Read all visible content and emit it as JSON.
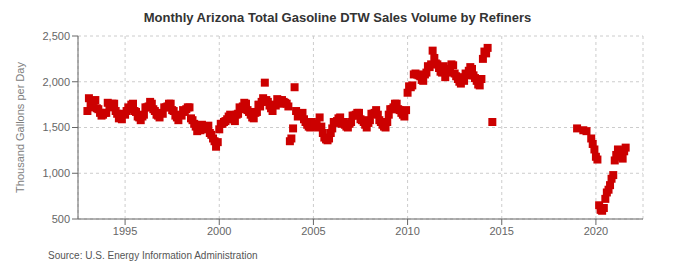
{
  "chart_data": {
    "type": "scatter",
    "title": "Monthly Arizona Total Gasoline DTW Sales Volume by Refiners",
    "ylabel": "Thousand Gallons per Day",
    "annotations": [
      "Source: U.S. Energy Information Administration"
    ],
    "color": "#CC0000",
    "marker": "square",
    "grid": true,
    "xlim": [
      1992.5,
      2022.5
    ],
    "xticks": [
      1995,
      2000,
      2005,
      2010,
      2015,
      2020
    ],
    "ylim": [
      500,
      2500
    ],
    "yticks": [
      500,
      {
        "value": 1000,
        "label": "1,000"
      },
      {
        "value": 1500,
        "label": "1,500"
      },
      {
        "value": 2000,
        "label": "2,000"
      },
      {
        "value": 2500,
        "label": "2,500"
      }
    ],
    "x": [
      1993.0,
      1993.08,
      1993.17,
      1993.25,
      1993.33,
      1993.42,
      1993.5,
      1993.58,
      1993.67,
      1993.75,
      1993.83,
      1993.92,
      1994.0,
      1994.08,
      1994.17,
      1994.25,
      1994.33,
      1994.42,
      1994.5,
      1994.58,
      1994.67,
      1994.75,
      1994.83,
      1994.92,
      1995.0,
      1995.08,
      1995.17,
      1995.25,
      1995.33,
      1995.42,
      1995.5,
      1995.58,
      1995.67,
      1995.75,
      1995.83,
      1995.92,
      1996.0,
      1996.08,
      1996.17,
      1996.25,
      1996.33,
      1996.42,
      1996.5,
      1996.58,
      1996.67,
      1996.75,
      1996.83,
      1996.92,
      1997.0,
      1997.08,
      1997.17,
      1997.25,
      1997.33,
      1997.42,
      1997.5,
      1997.58,
      1997.67,
      1997.75,
      1997.83,
      1997.92,
      1998.0,
      1998.08,
      1998.17,
      1998.25,
      1998.33,
      1998.42,
      1998.5,
      1998.58,
      1998.67,
      1998.75,
      1998.83,
      1998.92,
      1999.0,
      1999.08,
      1999.17,
      1999.25,
      1999.33,
      1999.42,
      1999.5,
      1999.58,
      1999.67,
      1999.75,
      1999.83,
      1999.92,
      2000.0,
      2000.08,
      2000.17,
      2000.25,
      2000.33,
      2000.42,
      2000.5,
      2000.58,
      2000.67,
      2000.75,
      2000.83,
      2000.92,
      2001.0,
      2001.08,
      2001.17,
      2001.25,
      2001.33,
      2001.42,
      2001.5,
      2001.58,
      2001.67,
      2001.75,
      2001.83,
      2001.92,
      2002.0,
      2002.08,
      2002.17,
      2002.25,
      2002.33,
      2002.42,
      2002.5,
      2002.58,
      2002.67,
      2002.75,
      2002.83,
      2002.92,
      2003.0,
      2003.08,
      2003.17,
      2003.25,
      2003.33,
      2003.42,
      2003.5,
      2003.58,
      2003.67,
      2003.75,
      2003.83,
      2003.92,
      2004.0,
      2004.08,
      2004.17,
      2004.25,
      2004.33,
      2004.42,
      2004.5,
      2004.58,
      2004.67,
      2004.75,
      2004.83,
      2004.92,
      2005.0,
      2005.08,
      2005.17,
      2005.25,
      2005.33,
      2005.42,
      2005.5,
      2005.58,
      2005.67,
      2005.75,
      2005.83,
      2005.92,
      2006.0,
      2006.08,
      2006.17,
      2006.25,
      2006.33,
      2006.42,
      2006.5,
      2006.58,
      2006.67,
      2006.75,
      2006.83,
      2006.92,
      2007.0,
      2007.08,
      2007.17,
      2007.25,
      2007.33,
      2007.42,
      2007.5,
      2007.58,
      2007.67,
      2007.75,
      2007.83,
      2007.92,
      2008.0,
      2008.08,
      2008.17,
      2008.25,
      2008.33,
      2008.42,
      2008.5,
      2008.58,
      2008.67,
      2008.75,
      2008.83,
      2008.92,
      2009.0,
      2009.08,
      2009.17,
      2009.25,
      2009.33,
      2009.42,
      2009.5,
      2009.58,
      2009.67,
      2009.75,
      2009.83,
      2009.92,
      2010.0,
      2010.08,
      2010.17,
      2010.25,
      2010.33,
      2010.42,
      2010.5,
      2010.58,
      2010.67,
      2010.75,
      2010.83,
      2010.92,
      2011.0,
      2011.08,
      2011.17,
      2011.25,
      2011.33,
      2011.42,
      2011.5,
      2011.58,
      2011.67,
      2011.75,
      2011.83,
      2011.92,
      2012.0,
      2012.08,
      2012.17,
      2012.25,
      2012.33,
      2012.42,
      2012.5,
      2012.58,
      2012.67,
      2012.75,
      2012.83,
      2012.92,
      2013.0,
      2013.08,
      2013.17,
      2013.25,
      2013.33,
      2013.42,
      2013.5,
      2013.58,
      2013.67,
      2013.75,
      2013.83,
      2013.92,
      2014.0,
      2014.08,
      2014.17,
      2014.25,
      2014.5,
      2019.0,
      2019.33,
      2019.5,
      2019.75,
      2019.83,
      2019.92,
      2020.0,
      2020.08,
      2020.17,
      2020.25,
      2020.33,
      2020.42,
      2020.5,
      2020.58,
      2020.67,
      2020.75,
      2020.83,
      2020.92,
      2021.0,
      2021.08,
      2021.17,
      2021.25,
      2021.33,
      2021.42,
      2021.5,
      2021.58
    ],
    "values": [
      1680,
      1820,
      1750,
      1720,
      1790,
      1800,
      1710,
      1700,
      1660,
      1630,
      1640,
      1660,
      1660,
      1770,
      1720,
      1740,
      1760,
      1760,
      1680,
      1650,
      1600,
      1620,
      1590,
      1650,
      1640,
      1680,
      1720,
      1700,
      1750,
      1760,
      1680,
      1670,
      1620,
      1610,
      1580,
      1620,
      1640,
      1720,
      1720,
      1730,
      1780,
      1760,
      1700,
      1680,
      1640,
      1630,
      1610,
      1660,
      1650,
      1720,
      1720,
      1730,
      1760,
      1760,
      1690,
      1680,
      1630,
      1610,
      1580,
      1640,
      1630,
      1690,
      1670,
      1700,
      1720,
      1720,
      1600,
      1580,
      1540,
      1510,
      1460,
      1500,
      1470,
      1530,
      1480,
      1490,
      1500,
      1520,
      1440,
      1420,
      1380,
      1350,
      1290,
      1340,
      1480,
      1540,
      1540,
      1560,
      1570,
      1590,
      1620,
      1640,
      1610,
      1590,
      1570,
      1640,
      1650,
      1720,
      1700,
      1730,
      1770,
      1760,
      1690,
      1670,
      1640,
      1610,
      1600,
      1660,
      1670,
      1750,
      1730,
      1780,
      1820,
      1990,
      1800,
      1780,
      1740,
      1710,
      1680,
      1750,
      1740,
      1810,
      1800,
      1760,
      1800,
      1780,
      1770,
      1760,
      1730,
      1350,
      1380,
      1490,
      1940,
      1680,
      1620,
      1640,
      1650,
      1660,
      1590,
      1560,
      1530,
      1510,
      1500,
      1560,
      1510,
      1540,
      1530,
      1500,
      1610,
      1510,
      1440,
      1390,
      1370,
      1360,
      1380,
      1440,
      1490,
      1560,
      1550,
      1570,
      1600,
      1610,
      1540,
      1560,
      1530,
      1510,
      1500,
      1540,
      1560,
      1630,
      1630,
      1640,
      1660,
      1660,
      1590,
      1580,
      1560,
      1530,
      1500,
      1550,
      1580,
      1650,
      1650,
      1660,
      1690,
      1640,
      1580,
      1560,
      1530,
      1510,
      1500,
      1560,
      1640,
      1700,
      1700,
      1720,
      1760,
      1760,
      1700,
      1690,
      1660,
      1640,
      1620,
      1690,
      1880,
      1950,
      1940,
      1960,
      2080,
      2090,
      2080,
      2070,
      2060,
      2020,
      2010,
      2080,
      2100,
      2170,
      2160,
      2190,
      2340,
      2260,
      2200,
      2190,
      2150,
      2110,
      2100,
      2170,
      2050,
      2120,
      2100,
      2140,
      2190,
      2180,
      2090,
      2060,
      2030,
      2000,
      1980,
      2050,
      2010,
      2090,
      2070,
      2120,
      2160,
      2140,
      2070,
      2040,
      2010,
      1970,
      1960,
      2030,
      2250,
      2330,
      2310,
      2370,
      1560,
      1490,
      1470,
      1460,
      1380,
      1320,
      1260,
      1180,
      1150,
      650,
      600,
      590,
      620,
      720,
      790,
      820,
      870,
      940,
      980,
      1140,
      1200,
      1260,
      1230,
      1180,
      1160,
      1240,
      1280
    ]
  }
}
